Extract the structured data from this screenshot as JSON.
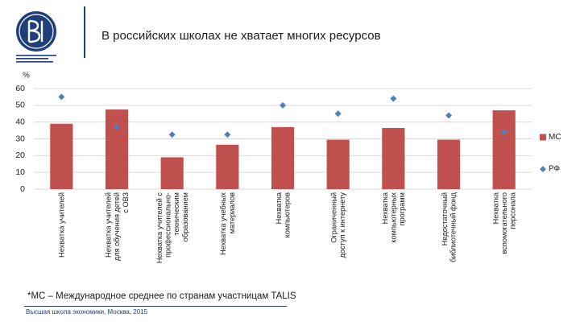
{
  "header": {
    "title": "В российских школах не хватает многих ресурсов"
  },
  "colors": {
    "brand": "#1f3f7a",
    "bar": "#c0504d",
    "marker": "#4f81bd",
    "grid": "#d9d9d9"
  },
  "chart_data": {
    "type": "bar",
    "ylabel": "%",
    "ylim": [
      0,
      60
    ],
    "yticks": [
      0,
      10,
      20,
      30,
      40,
      50,
      60
    ],
    "grid": true,
    "legend_position": "right",
    "categories": [
      "Нехватка учителей",
      "Нехватка учителей для обучения детей с ОВЗ",
      "Нехватка учителей с профессионально-техническим образованием",
      "Нехватка учебных материалов",
      "Нехватка компьютеров",
      "Ограниченный доступ к интернету",
      "Нехватка компьютерных программ",
      "Недостаточный библиотечный фонд",
      "Нехватка вспомогательного персонала"
    ],
    "category_lines": [
      [
        "Нехватка учителей"
      ],
      [
        "Нехватка учителей",
        "для обучения детей",
        "с ОВЗ"
      ],
      [
        "Нехватка учителей с",
        "профессионально-",
        "техническим",
        "образованием"
      ],
      [
        "Нехватка учебных",
        "материалов"
      ],
      [
        "Нехватка",
        "компьютеров"
      ],
      [
        "Ограниченный",
        "доступ к интернету"
      ],
      [
        "Нехватка",
        "компьютерных",
        "программ"
      ],
      [
        "Недостаточный",
        "библиотечный фонд"
      ],
      [
        "Нехватка",
        "вспомогательного",
        "персонала"
      ]
    ],
    "series": [
      {
        "name": "МС",
        "kind": "bar",
        "values": [
          39,
          47.5,
          19,
          26.5,
          37,
          29.5,
          36.5,
          29.5,
          47
        ]
      },
      {
        "name": "РФ",
        "kind": "marker",
        "values": [
          55,
          37,
          32.5,
          32.5,
          50,
          45,
          54,
          44,
          34
        ]
      }
    ]
  },
  "footnote": "*МС – Международное среднее по странам участницам TALIS",
  "footer": "Высшая школа экономики, Москва, 2015"
}
